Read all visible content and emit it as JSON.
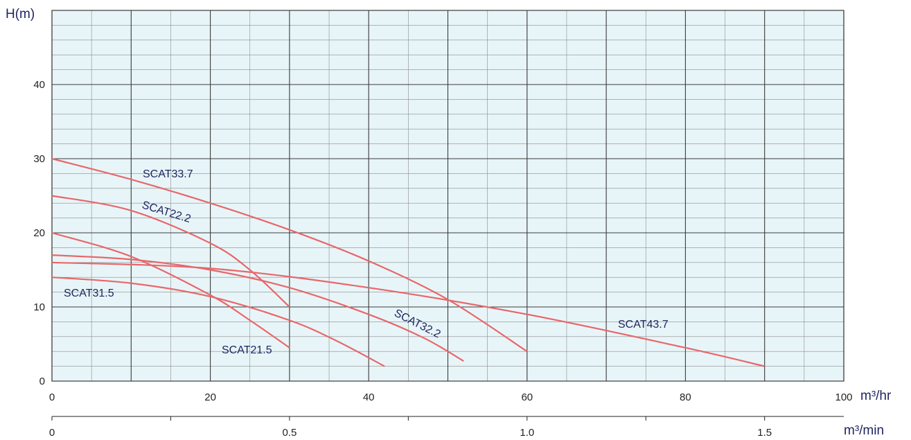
{
  "chart_data": {
    "type": "line",
    "ylabel": "H(m)",
    "xlabel": "m³/hr",
    "x2label": "m³/min",
    "xlim": [
      0,
      100
    ],
    "ylim": [
      0,
      50
    ],
    "x_ticks": [
      "0",
      "20",
      "40",
      "60",
      "80",
      "100"
    ],
    "y_ticks": [
      "0",
      "10",
      "20",
      "30",
      "40"
    ],
    "x2_ticks": [
      "0",
      "0.5",
      "1.0",
      "1.5"
    ],
    "grid": true,
    "colors": {
      "background": "#e8f5f8",
      "curve": "#e8676a",
      "major_grid": "#3a3a3a",
      "minor_grid": "#8a8a8a",
      "label": "#1f2560"
    },
    "series": [
      {
        "name": "SCAT33.7",
        "x": [
          0,
          10,
          20,
          30,
          40,
          50,
          60
        ],
        "y": [
          30,
          27.2,
          24,
          20.4,
          16.2,
          11,
          4
        ]
      },
      {
        "name": "SCAT22.2",
        "x": [
          0,
          10,
          20,
          25,
          30
        ],
        "y": [
          25,
          23,
          18.6,
          15,
          10
        ]
      },
      {
        "name": "SCAT21.5",
        "x": [
          0,
          10,
          20,
          25,
          30
        ],
        "y": [
          20,
          16.8,
          11.6,
          8.2,
          4.5
        ]
      },
      {
        "name": "SCAT31.5",
        "x": [
          0,
          10,
          20,
          30,
          36,
          42
        ],
        "y": [
          14,
          13.2,
          11.4,
          8.2,
          5.4,
          2
        ]
      },
      {
        "name": "SCAT32.2",
        "x": [
          0,
          10,
          20,
          30,
          40,
          47,
          52
        ],
        "y": [
          17,
          16.4,
          15,
          12.6,
          9,
          5.8,
          2.7
        ]
      },
      {
        "name": "SCAT43.7",
        "x": [
          0,
          20,
          40,
          60,
          80,
          90
        ],
        "y": [
          16,
          15.2,
          12.6,
          9,
          4.5,
          2
        ]
      }
    ]
  }
}
